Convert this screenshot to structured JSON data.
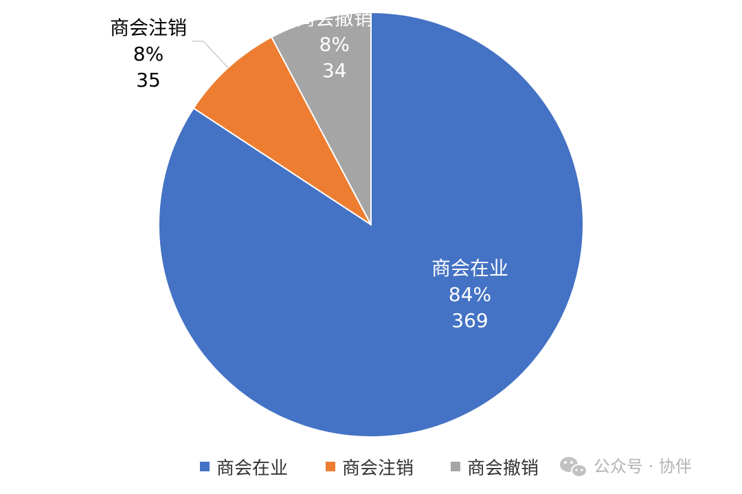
{
  "chart_data": {
    "type": "pie",
    "categories": [
      "商会在业",
      "商会注销",
      "商会撤销"
    ],
    "values": [
      369,
      35,
      34
    ],
    "percent_labels": [
      "84%",
      "8%",
      "8%"
    ],
    "colors": [
      "#4472C4",
      "#ED7D31",
      "#A5A5A5"
    ],
    "legend_position": "bottom",
    "start": "12 o'clock, clockwise"
  },
  "watermark": {
    "icon": "wechat-icon",
    "text": "公众号 · 协伴"
  }
}
